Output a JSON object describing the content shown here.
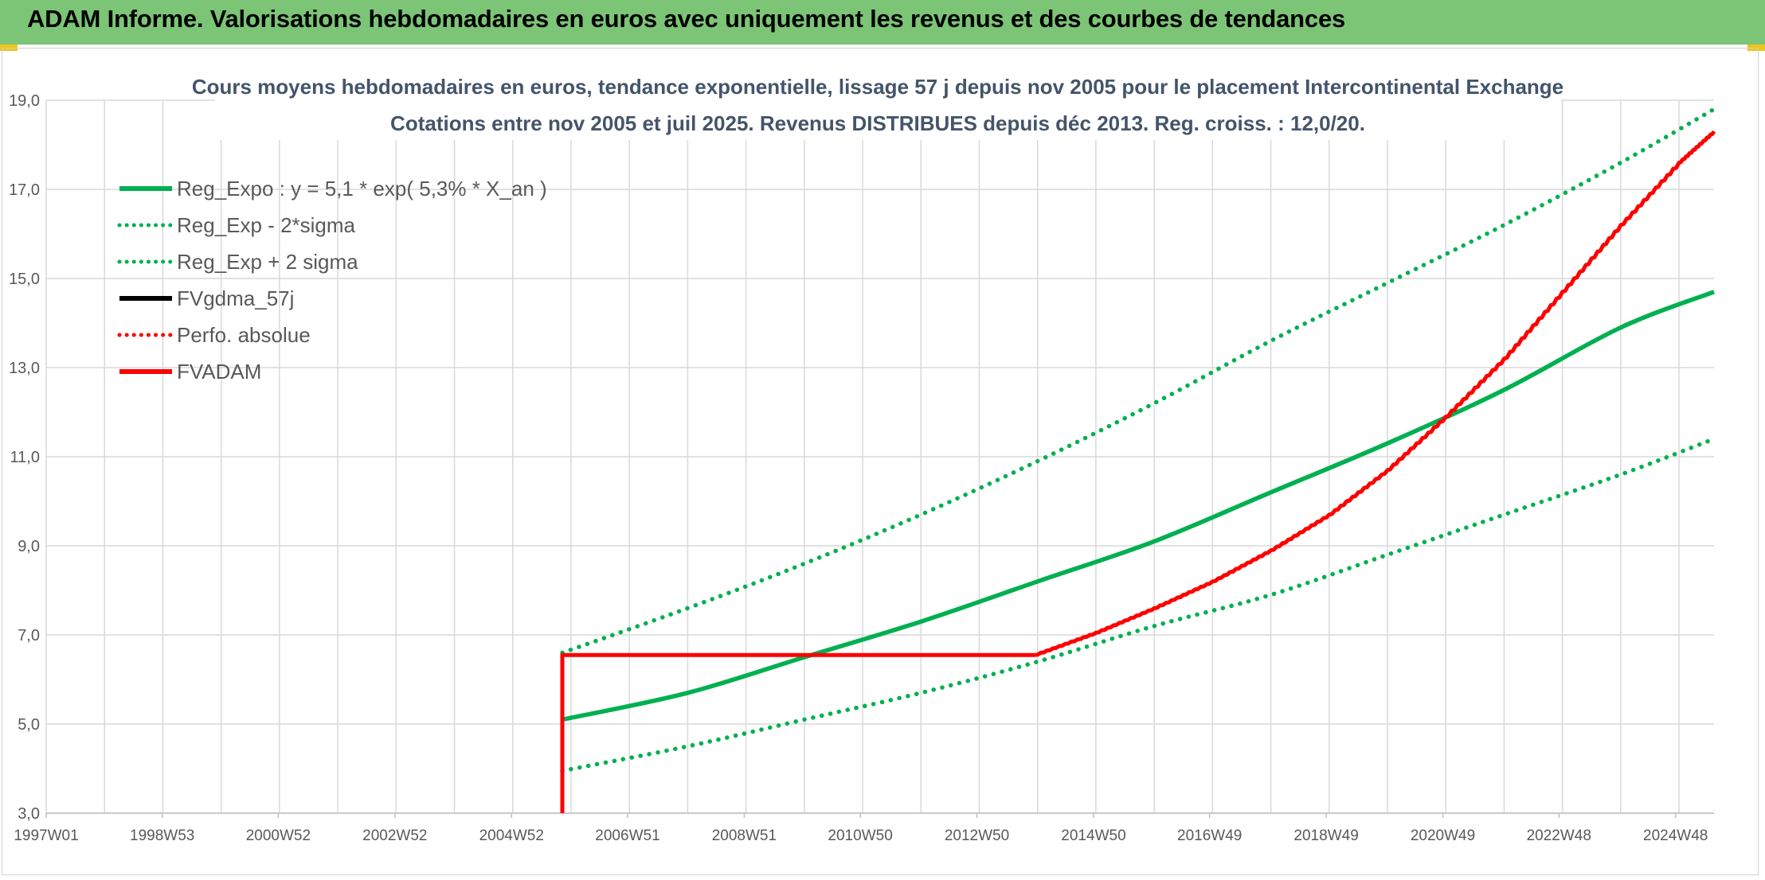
{
  "header": {
    "title": "ADAM Informe. Valorisations hebdomadaires en euros avec uniquement les revenus et des courbes de tendances"
  },
  "colors": {
    "header_bg": "#7cc576",
    "green": "#00b050",
    "red": "#ff0000",
    "black": "#000000",
    "grid": "#d9d9d9",
    "text": "#595959",
    "title": "#44546a"
  },
  "chart_data": {
    "type": "line",
    "title": "Cours moyens hebdomadaires en euros, tendance exponentielle, lissage 57 j depuis nov 2005 pour le placement Intercontinental Exchange",
    "subtitle": "Cotations entre nov 2005 et juil 2025. Revenus DISTRIBUES depuis déc 2013. Reg. croiss. : 12,0/20.",
    "xlabel": "",
    "ylabel": "",
    "ylim": [
      3.0,
      19.0
    ],
    "yticks": [
      "3,0",
      "5,0",
      "7,0",
      "9,0",
      "11,0",
      "13,0",
      "15,0",
      "17,0",
      "19,0"
    ],
    "xlim": [
      1997.0,
      2025.6
    ],
    "xticks": [
      {
        "label": "1997W01",
        "x": 1997.0
      },
      {
        "label": "1998W53",
        "x": 1998.99
      },
      {
        "label": "2000W52",
        "x": 2000.98
      },
      {
        "label": "2002W52",
        "x": 2002.98
      },
      {
        "label": "2004W52",
        "x": 2004.98
      },
      {
        "label": "2006W51",
        "x": 2006.97
      },
      {
        "label": "2008W51",
        "x": 2008.97
      },
      {
        "label": "2010W50",
        "x": 2010.96
      },
      {
        "label": "2012W50",
        "x": 2012.96
      },
      {
        "label": "2014W50",
        "x": 2014.96
      },
      {
        "label": "2016W49",
        "x": 2016.95
      },
      {
        "label": "2018W49",
        "x": 2018.95
      },
      {
        "label": "2020W49",
        "x": 2020.95
      },
      {
        "label": "2022W48",
        "x": 2022.94
      },
      {
        "label": "2024W48",
        "x": 2024.94
      }
    ],
    "grid": true,
    "legend_position": "top-left",
    "series": [
      {
        "name": "Reg_Expo : y = 5,1 * exp( 5,3% *  X_an )",
        "color": "#00b050",
        "style": "solid",
        "x": [
          2005.85,
          2008,
          2010,
          2012,
          2014,
          2016,
          2018,
          2020,
          2022,
          2024,
          2025.6
        ],
        "y": [
          5.1,
          5.7,
          6.5,
          7.3,
          8.2,
          9.1,
          10.2,
          11.3,
          12.5,
          13.9,
          14.7
        ]
      },
      {
        "name": "Reg_Exp - 2*sigma",
        "color": "#00b050",
        "style": "dotted",
        "x": [
          2005.85,
          2008,
          2010,
          2012,
          2014,
          2016,
          2018,
          2020,
          2022,
          2024,
          2025.6
        ],
        "y": [
          3.95,
          4.5,
          5.1,
          5.7,
          6.4,
          7.2,
          7.9,
          8.8,
          9.7,
          10.6,
          11.4
        ]
      },
      {
        "name": "Reg_Exp + 2 sigma",
        "color": "#00b050",
        "style": "dotted",
        "x": [
          2005.85,
          2008,
          2010,
          2012,
          2014,
          2016,
          2018,
          2020,
          2022,
          2024,
          2025.6
        ],
        "y": [
          6.6,
          7.6,
          8.6,
          9.7,
          10.9,
          12.2,
          13.6,
          14.9,
          16.2,
          17.6,
          18.8
        ]
      },
      {
        "name": "FVgdma_57j",
        "color": "#000000",
        "style": "solid",
        "x": [
          2013.95,
          2015,
          2016,
          2017,
          2018,
          2019,
          2020,
          2021,
          2022,
          2023,
          2024,
          2025,
          2025.6
        ],
        "y": [
          6.55,
          7.05,
          7.6,
          8.2,
          8.9,
          9.7,
          10.7,
          11.9,
          13.2,
          14.7,
          16.2,
          17.6,
          18.3
        ]
      },
      {
        "name": "Perfo. absolue",
        "color": "#ff0000",
        "style": "dotted",
        "x": [
          2013.95,
          2015,
          2016,
          2017,
          2018,
          2019,
          2020,
          2021,
          2022,
          2023,
          2024,
          2025,
          2025.6
        ],
        "y": [
          6.55,
          7.05,
          7.6,
          8.2,
          8.9,
          9.7,
          10.7,
          11.9,
          13.2,
          14.7,
          16.2,
          17.6,
          18.3
        ]
      },
      {
        "name": "FVADAM",
        "color": "#ff0000",
        "style": "solid",
        "x": [
          2005.85,
          2005.85,
          2013.95,
          2015,
          2016,
          2017,
          2018,
          2019,
          2020,
          2021,
          2022,
          2023,
          2024,
          2025,
          2025.6
        ],
        "y": [
          3.0,
          6.55,
          6.55,
          7.05,
          7.6,
          8.2,
          8.9,
          9.7,
          10.7,
          11.9,
          13.2,
          14.7,
          16.2,
          17.6,
          18.3
        ]
      }
    ]
  }
}
